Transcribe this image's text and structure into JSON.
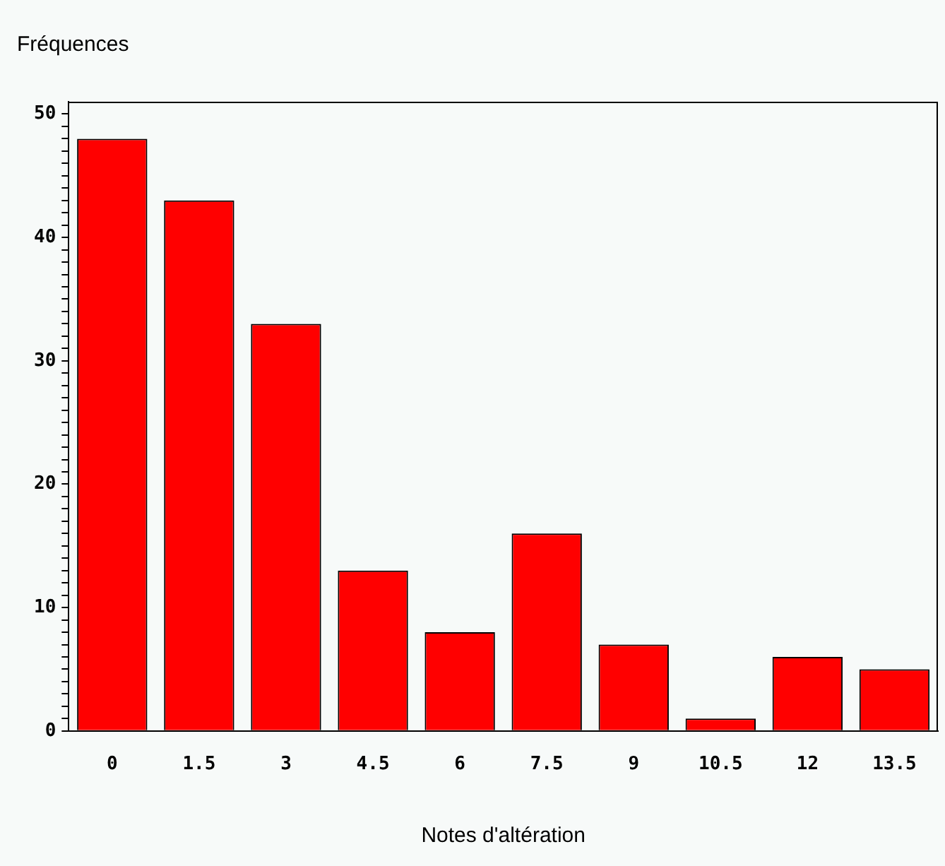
{
  "chart_data": {
    "type": "bar",
    "ylabel": "Fréquences",
    "xlabel": "Notes d'altération",
    "categories": [
      "0",
      "1.5",
      "3",
      "4.5",
      "6",
      "7.5",
      "9",
      "10.5",
      "12",
      "13.5"
    ],
    "values": [
      48,
      43,
      33,
      13,
      8,
      16,
      7,
      1,
      6,
      5
    ],
    "color": "#ff0000",
    "ylim": [
      0,
      51
    ],
    "yticks": [
      0,
      {
        "value": 1,
        "label": null
      },
      {
        "value": 2,
        "label": null
      },
      {
        "value": 3,
        "label": null
      },
      {
        "value": 4,
        "label": null
      },
      {
        "value": 5,
        "label": null
      },
      {
        "value": 6,
        "label": null
      },
      {
        "value": 7,
        "label": null
      },
      {
        "value": 8,
        "label": null
      },
      {
        "value": 9,
        "label": null
      },
      10,
      {
        "value": 11,
        "label": null
      },
      {
        "value": 12,
        "label": null
      },
      {
        "value": 13,
        "label": null
      },
      {
        "value": 14,
        "label": null
      },
      {
        "value": 15,
        "label": null
      },
      {
        "value": 16,
        "label": null
      },
      {
        "value": 17,
        "label": null
      },
      {
        "value": 18,
        "label": null
      },
      {
        "value": 19,
        "label": null
      },
      20,
      {
        "value": 21,
        "label": null
      },
      {
        "value": 22,
        "label": null
      },
      {
        "value": 23,
        "label": null
      },
      {
        "value": 24,
        "label": null
      },
      {
        "value": 25,
        "label": null
      },
      {
        "value": 26,
        "label": null
      },
      {
        "value": 27,
        "label": null
      },
      {
        "value": 28,
        "label": null
      },
      {
        "value": 29,
        "label": null
      },
      30,
      {
        "value": 31,
        "label": null
      },
      {
        "value": 32,
        "label": null
      },
      {
        "value": 33,
        "label": null
      },
      {
        "value": 34,
        "label": null
      },
      {
        "value": 35,
        "label": null
      },
      {
        "value": 36,
        "label": null
      },
      {
        "value": 37,
        "label": null
      },
      {
        "value": 38,
        "label": null
      },
      {
        "value": 39,
        "label": null
      },
      40,
      {
        "value": 41,
        "label": null
      },
      {
        "value": 42,
        "label": null
      },
      {
        "value": 43,
        "label": null
      },
      {
        "value": 44,
        "label": null
      },
      {
        "value": 45,
        "label": null
      },
      {
        "value": 46,
        "label": null
      },
      {
        "value": 47,
        "label": null
      },
      {
        "value": 48,
        "label": null
      },
      {
        "value": 49,
        "label": null
      },
      50
    ],
    "grid": false,
    "legend": false
  }
}
